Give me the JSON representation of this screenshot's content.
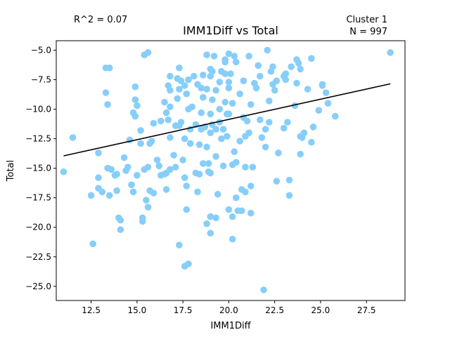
{
  "chart_data": {
    "type": "scatter",
    "title": "IMM1Diff vs Total",
    "xlabel": "IMM1Diff",
    "ylabel": "Total",
    "r2_label": "R^2 = 0.07",
    "cluster_label": "Cluster 1",
    "n_label": "N = 997",
    "xlim": [
      10.6,
      29.6
    ],
    "ylim": [
      -26.2,
      -4.2
    ],
    "x_ticks": [
      12.5,
      15.0,
      17.5,
      20.0,
      22.5,
      25.0,
      27.5
    ],
    "x_tick_labels": [
      "12.5",
      "15.0",
      "17.5",
      "20.0",
      "22.5",
      "25.0",
      "27.5"
    ],
    "y_ticks": [
      -25.0,
      -22.5,
      -20.0,
      -17.5,
      -15.0,
      -12.5,
      -10.0,
      -7.5,
      -5.0
    ],
    "y_tick_labels": [
      "−25.0",
      "−22.5",
      "−20.0",
      "−17.5",
      "−15.0",
      "−12.5",
      "−10.0",
      "−7.5",
      "−5.0"
    ],
    "grid": false,
    "point_color": "#87CEFA",
    "line_color": "#000000",
    "trend_line": {
      "x": [
        11.0,
        28.8
      ],
      "y": [
        -13.95,
        -7.85
      ]
    },
    "points": [
      [
        11.0,
        -15.3
      ],
      [
        11.5,
        -12.4
      ],
      [
        12.5,
        -17.3
      ],
      [
        12.6,
        -21.4
      ],
      [
        12.9,
        -13.7
      ],
      [
        12.9,
        -15.8
      ],
      [
        12.9,
        -16.7
      ],
      [
        13.1,
        -17.0
      ],
      [
        13.3,
        -6.5
      ],
      [
        13.3,
        -8.6
      ],
      [
        13.4,
        -9.6
      ],
      [
        13.5,
        -6.5
      ],
      [
        13.4,
        -15.0
      ],
      [
        13.6,
        -15.1
      ],
      [
        13.5,
        -17.3
      ],
      [
        13.8,
        -15.6
      ],
      [
        13.9,
        -15.5
      ],
      [
        13.9,
        -16.9
      ],
      [
        14.0,
        -19.2
      ],
      [
        14.1,
        -20.2
      ],
      [
        14.1,
        -19.4
      ],
      [
        14.3,
        -14.1
      ],
      [
        14.4,
        -15.2
      ],
      [
        14.5,
        -14.9
      ],
      [
        14.6,
        -12.6
      ],
      [
        14.7,
        -16.4
      ],
      [
        14.8,
        -17.0
      ],
      [
        14.8,
        -10.3
      ],
      [
        14.9,
        -9.2
      ],
      [
        14.9,
        -8.1
      ],
      [
        14.9,
        -10.6
      ],
      [
        15.0,
        -15.6
      ],
      [
        15.0,
        -9.7
      ],
      [
        15.2,
        -11.8
      ],
      [
        15.2,
        -12.9
      ],
      [
        15.3,
        -19.2
      ],
      [
        15.3,
        -19.5
      ],
      [
        15.4,
        -15.1
      ],
      [
        15.4,
        -5.4
      ],
      [
        15.5,
        -17.7
      ],
      [
        15.6,
        -14.9
      ],
      [
        15.6,
        -18.3
      ],
      [
        15.6,
        -5.2
      ],
      [
        15.7,
        -16.9
      ],
      [
        15.7,
        -12.9
      ],
      [
        15.8,
        -12.7
      ],
      [
        15.9,
        -11.2
      ],
      [
        15.9,
        -17.1
      ],
      [
        16.1,
        -14.3
      ],
      [
        16.2,
        -14.8
      ],
      [
        16.3,
        -15.6
      ],
      [
        16.3,
        -11.0
      ],
      [
        16.5,
        -15.5
      ],
      [
        16.5,
        -9.4
      ],
      [
        16.6,
        -16.8
      ],
      [
        16.6,
        -10.3
      ],
      [
        16.6,
        -15.4
      ],
      [
        16.7,
        -8.0
      ],
      [
        16.7,
        -10.9
      ],
      [
        16.8,
        -7.2
      ],
      [
        16.8,
        -9.8
      ],
      [
        16.8,
        -12.4
      ],
      [
        16.8,
        -8.4
      ],
      [
        16.8,
        -15.1
      ],
      [
        17.0,
        -13.9
      ],
      [
        17.1,
        -11.4
      ],
      [
        17.1,
        -14.9
      ],
      [
        17.2,
        -7.4
      ],
      [
        17.2,
        -9.1
      ],
      [
        17.3,
        -6.5
      ],
      [
        17.3,
        -8.3
      ],
      [
        17.3,
        -11.4
      ],
      [
        17.3,
        -21.5
      ],
      [
        17.4,
        -7.6
      ],
      [
        17.4,
        -11.1
      ],
      [
        17.5,
        -14.3
      ],
      [
        17.6,
        -23.3
      ],
      [
        17.6,
        -8.0
      ],
      [
        17.6,
        -12.5
      ],
      [
        17.6,
        -15.8
      ],
      [
        17.7,
        -8.7
      ],
      [
        17.7,
        -18.5
      ],
      [
        17.7,
        -16.5
      ],
      [
        17.8,
        -23.1
      ],
      [
        17.8,
        -7.5
      ],
      [
        17.8,
        -10.0
      ],
      [
        17.9,
        -11.7
      ],
      [
        17.9,
        -12.9
      ],
      [
        18.0,
        -9.8
      ],
      [
        18.1,
        -7.2
      ],
      [
        18.2,
        -11.3
      ],
      [
        18.2,
        -15.4
      ],
      [
        18.3,
        -7.9
      ],
      [
        18.3,
        -17.0
      ],
      [
        18.4,
        -13.0
      ],
      [
        18.4,
        -15.5
      ],
      [
        18.5,
        -10.3
      ],
      [
        18.5,
        -11.7
      ],
      [
        18.5,
        -8.2
      ],
      [
        18.6,
        -7.1
      ],
      [
        18.6,
        -9.0
      ],
      [
        18.6,
        -14.6
      ],
      [
        18.7,
        -11.5
      ],
      [
        18.8,
        -13.2
      ],
      [
        18.8,
        -8.3
      ],
      [
        18.8,
        -5.4
      ],
      [
        18.8,
        -19.7
      ],
      [
        18.9,
        -15.3
      ],
      [
        18.9,
        -14.6
      ],
      [
        19.0,
        -10.4
      ],
      [
        19.0,
        -12.0
      ],
      [
        19.0,
        -7.2
      ],
      [
        19.0,
        -6.6
      ],
      [
        19.0,
        -19.1
      ],
      [
        19.0,
        -20.5
      ],
      [
        19.0,
        -15.4
      ],
      [
        19.1,
        -11.3
      ],
      [
        19.1,
        -9.2
      ],
      [
        19.1,
        -6.8
      ],
      [
        19.2,
        -5.5
      ],
      [
        19.3,
        -11.7
      ],
      [
        19.3,
        -8.4
      ],
      [
        19.3,
        -19.2
      ],
      [
        19.3,
        -14.0
      ],
      [
        19.4,
        -17.2
      ],
      [
        19.5,
        -11.1
      ],
      [
        19.5,
        -10.0
      ],
      [
        19.5,
        -7.7
      ],
      [
        19.6,
        -6.8
      ],
      [
        19.6,
        -12.5
      ],
      [
        19.7,
        -11.7
      ],
      [
        19.7,
        -14.8
      ],
      [
        19.8,
        -7.0
      ],
      [
        19.8,
        -6.0
      ],
      [
        19.8,
        -9.4
      ],
      [
        19.8,
        -5.8
      ],
      [
        19.9,
        -12.3
      ],
      [
        19.9,
        -10.4
      ],
      [
        20.0,
        -5.3
      ],
      [
        20.0,
        -8.2
      ],
      [
        20.0,
        -10.4
      ],
      [
        20.0,
        -18.5
      ],
      [
        20.0,
        -7.7
      ],
      [
        20.1,
        -7.0
      ],
      [
        20.2,
        -9.5
      ],
      [
        20.2,
        -14.7
      ],
      [
        20.2,
        -19.1
      ],
      [
        20.2,
        -21.0
      ],
      [
        20.3,
        -5.5
      ],
      [
        20.3,
        -13.6
      ],
      [
        20.4,
        -17.5
      ],
      [
        20.4,
        -6.0
      ],
      [
        20.4,
        -14.5
      ],
      [
        20.5,
        -18.6
      ],
      [
        20.6,
        -12.7
      ],
      [
        20.6,
        -8.7
      ],
      [
        20.7,
        -16.8
      ],
      [
        20.7,
        -18.6
      ],
      [
        20.8,
        -7.6
      ],
      [
        20.8,
        -10.7
      ],
      [
        20.9,
        -12.3
      ],
      [
        20.9,
        -17.0
      ],
      [
        20.9,
        -14.9
      ],
      [
        21.0,
        -11.0
      ],
      [
        21.1,
        -5.5
      ],
      [
        21.1,
        -12.0
      ],
      [
        21.2,
        -9.6
      ],
      [
        21.2,
        -16.5
      ],
      [
        21.2,
        -18.8
      ],
      [
        21.3,
        -14.9
      ],
      [
        21.4,
        -7.8
      ],
      [
        21.5,
        -8.2
      ],
      [
        21.6,
        -6.3
      ],
      [
        21.7,
        -10.9
      ],
      [
        21.7,
        -7.2
      ],
      [
        21.8,
        -12.4
      ],
      [
        21.9,
        -25.3
      ],
      [
        22.0,
        -13.2
      ],
      [
        22.0,
        -11.7
      ],
      [
        22.1,
        -5.0
      ],
      [
        22.2,
        -9.3
      ],
      [
        22.2,
        -11.1
      ],
      [
        22.3,
        -6.8
      ],
      [
        22.4,
        -6.4
      ],
      [
        22.4,
        -7.9
      ],
      [
        22.5,
        -8.4
      ],
      [
        22.6,
        -16.1
      ],
      [
        22.6,
        -7.6
      ],
      [
        22.7,
        -13.7
      ],
      [
        23.0,
        -11.6
      ],
      [
        23.0,
        -7.2
      ],
      [
        23.1,
        -7.0
      ],
      [
        23.1,
        -7.5
      ],
      [
        23.2,
        -11.1
      ],
      [
        23.3,
        -17.3
      ],
      [
        23.3,
        -16.0
      ],
      [
        23.4,
        -6.4
      ],
      [
        23.6,
        -9.7
      ],
      [
        23.7,
        -5.8
      ],
      [
        23.7,
        -7.8
      ],
      [
        23.8,
        -6.1
      ],
      [
        23.9,
        -6.6
      ],
      [
        23.9,
        -13.8
      ],
      [
        23.9,
        -12.3
      ],
      [
        24.0,
        -12.4
      ],
      [
        24.1,
        -12.0
      ],
      [
        24.3,
        -8.3
      ],
      [
        24.5,
        -5.7
      ],
      [
        24.5,
        -12.8
      ],
      [
        24.6,
        -11.5
      ],
      [
        24.9,
        -10.1
      ],
      [
        25.1,
        -7.9
      ],
      [
        25.1,
        -8.0
      ],
      [
        25.3,
        -8.6
      ],
      [
        25.4,
        -9.5
      ],
      [
        25.8,
        -10.6
      ],
      [
        28.8,
        -5.2
      ]
    ]
  }
}
